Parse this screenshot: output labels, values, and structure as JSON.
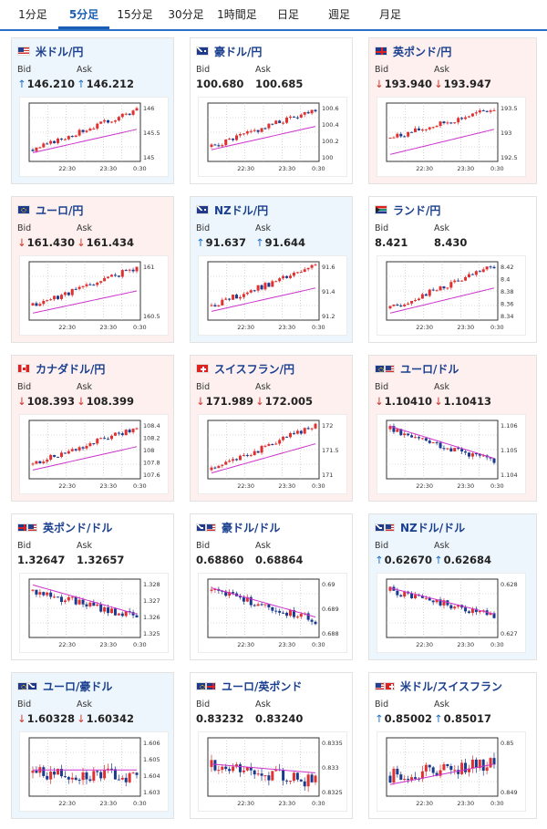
{
  "tabs": [
    {
      "label": "1分足",
      "active": false
    },
    {
      "label": "5分足",
      "active": true
    },
    {
      "label": "15分足",
      "active": false
    },
    {
      "label": "30分足",
      "active": false
    },
    {
      "label": "1時間足",
      "active": false
    },
    {
      "label": "日足",
      "active": false
    },
    {
      "label": "週足",
      "active": false
    },
    {
      "label": "月足",
      "active": false
    }
  ],
  "labels": {
    "bid": "Bid",
    "ask": "Ask"
  },
  "colors": {
    "up": "#1f70c1",
    "down": "#d0352a",
    "ma": "#cc33cc",
    "candle_up": "#e03030",
    "candle_down": "#1a3a8f"
  },
  "cards": [
    {
      "name": "米ドル/円",
      "flag": "US",
      "bg": "up",
      "dir": "up",
      "bid": "146.210",
      "ask": "146.212",
      "yticks": [
        "146",
        "145.5",
        "145"
      ],
      "xticks": [
        "22:30",
        "23:30",
        "0:30"
      ],
      "series": {
        "trend": 0.9,
        "vol": 0.04,
        "seed": 3,
        "start": 0.2,
        "end": 0.88,
        "ma_start": 0.15,
        "ma_end": 0.55
      }
    },
    {
      "name": "豪ドル/円",
      "flag": "AU",
      "bg": "flat",
      "dir": "none",
      "bid": "100.680",
      "ask": "100.685",
      "yticks": [
        "100.6",
        "100.4",
        "100.2",
        "100"
      ],
      "xticks": [
        "22:30",
        "23:30",
        "0:30"
      ],
      "series": {
        "trend": 0.9,
        "vol": 0.05,
        "seed": 5,
        "start": 0.25,
        "end": 0.9,
        "ma_start": 0.2,
        "ma_end": 0.6
      }
    },
    {
      "name": "英ポンド/円",
      "flag": "GB",
      "bg": "down",
      "dir": "down",
      "bid": "193.940",
      "ask": "193.947",
      "yticks": [
        "193.5",
        "193",
        "192.5"
      ],
      "xticks": [
        "22:30",
        "23:30",
        "0:30"
      ],
      "series": {
        "trend": 0.9,
        "vol": 0.05,
        "seed": 7,
        "start": 0.4,
        "end": 0.9,
        "ma_start": 0.12,
        "ma_end": 0.55
      }
    },
    {
      "name": "ユーロ/円",
      "flag": "EU",
      "bg": "down",
      "dir": "down",
      "bid": "161.430",
      "ask": "161.434",
      "yticks": [
        "161",
        "160.5"
      ],
      "xticks": [
        "22:30",
        "23:30",
        "0:30"
      ],
      "series": {
        "trend": 0.9,
        "vol": 0.05,
        "seed": 11,
        "start": 0.25,
        "end": 0.9,
        "ma_start": 0.12,
        "ma_end": 0.5
      }
    },
    {
      "name": "NZドル/円",
      "flag": "NZ",
      "bg": "up",
      "dir": "up",
      "bid": "91.637",
      "ask": "91.644",
      "yticks": [
        "91.6",
        "91.4",
        "91.2"
      ],
      "xticks": [
        "22:30",
        "23:30",
        "0:30"
      ],
      "series": {
        "trend": 0.9,
        "vol": 0.05,
        "seed": 13,
        "start": 0.25,
        "end": 0.92,
        "ma_start": 0.15,
        "ma_end": 0.55
      }
    },
    {
      "name": "ランド/円",
      "flag": "ZA",
      "bg": "flat",
      "dir": "none",
      "bid": "8.421",
      "ask": "8.430",
      "yticks": [
        "8.42",
        "8.4",
        "8.38",
        "8.36",
        "8.34"
      ],
      "xticks": [
        "22:30",
        "23:30",
        "0:30"
      ],
      "series": {
        "trend": 0.9,
        "vol": 0.05,
        "seed": 17,
        "start": 0.2,
        "end": 0.92,
        "ma_start": 0.12,
        "ma_end": 0.55
      }
    },
    {
      "name": "カナダドル/円",
      "flag": "CA",
      "bg": "down",
      "dir": "down",
      "bid": "108.393",
      "ask": "108.399",
      "yticks": [
        "108.4",
        "108.2",
        "108",
        "107.8",
        "107.6"
      ],
      "xticks": [
        "22:30",
        "23:30",
        "0:30"
      ],
      "series": {
        "trend": 0.9,
        "vol": 0.05,
        "seed": 19,
        "start": 0.25,
        "end": 0.88,
        "ma_start": 0.15,
        "ma_end": 0.55
      }
    },
    {
      "name": "スイスフラン/円",
      "flag": "CH",
      "bg": "down",
      "dir": "down",
      "bid": "171.989",
      "ask": "172.005",
      "yticks": [
        "172",
        "171.5",
        "171"
      ],
      "xticks": [
        "22:30",
        "23:30",
        "0:30"
      ],
      "series": {
        "trend": 0.9,
        "vol": 0.05,
        "seed": 23,
        "start": 0.15,
        "end": 0.92,
        "ma_start": 0.1,
        "ma_end": 0.6
      }
    },
    {
      "name": "ユーロ/ドル",
      "flag": "EU-US",
      "bg": "down",
      "dir": "down",
      "bid": "1.10410",
      "ask": "1.10413",
      "yticks": [
        "1.106",
        "1.105",
        "1.104"
      ],
      "xticks": [
        "22:30",
        "23:30",
        "0:30"
      ],
      "series": {
        "trend": -0.7,
        "vol": 0.06,
        "seed": 29,
        "start": 0.85,
        "end": 0.3,
        "ma_start": 0.9,
        "ma_end": 0.35
      }
    },
    {
      "name": "英ポンド/ドル",
      "flag": "GB-US",
      "bg": "flat",
      "dir": "none",
      "bid": "1.32647",
      "ask": "1.32657",
      "yticks": [
        "1.328",
        "1.327",
        "1.326",
        "1.325"
      ],
      "xticks": [
        "22:30",
        "23:30",
        "0:30"
      ],
      "series": {
        "trend": -0.6,
        "vol": 0.07,
        "seed": 31,
        "start": 0.8,
        "end": 0.35,
        "ma_start": 0.9,
        "ma_end": 0.4
      }
    },
    {
      "name": "豪ドル/ドル",
      "flag": "AU-US",
      "bg": "flat",
      "dir": "none",
      "bid": "0.68860",
      "ask": "0.68864",
      "yticks": [
        "0.69",
        "0.689",
        "0.688"
      ],
      "xticks": [
        "22:30",
        "23:30",
        "0:30"
      ],
      "series": {
        "trend": -0.6,
        "vol": 0.07,
        "seed": 37,
        "start": 0.8,
        "end": 0.3,
        "ma_start": 0.85,
        "ma_end": 0.35
      }
    },
    {
      "name": "NZドル/ドル",
      "flag": "NZ-US",
      "bg": "up",
      "dir": "up",
      "bid": "0.62670",
      "ask": "0.62684",
      "yticks": [
        "0.628",
        "0.627"
      ],
      "xticks": [
        "22:30",
        "23:30",
        "0:30"
      ],
      "series": {
        "trend": -0.6,
        "vol": 0.07,
        "seed": 41,
        "start": 0.8,
        "end": 0.35,
        "ma_start": 0.85,
        "ma_end": 0.4
      }
    },
    {
      "name": "ユーロ/豪ドル",
      "flag": "EU-AU",
      "bg": "up",
      "dir": "down",
      "bid": "1.60328",
      "ask": "1.60342",
      "yticks": [
        "1.606",
        "1.605",
        "1.604",
        "1.603"
      ],
      "xticks": [
        "22:30",
        "23:30",
        "0:30"
      ],
      "series": {
        "trend": 0.0,
        "vol": 0.12,
        "seed": 43,
        "start": 0.4,
        "end": 0.35,
        "ma_start": 0.45,
        "ma_end": 0.45
      }
    },
    {
      "name": "ユーロ/英ポンド",
      "flag": "EU-GB",
      "bg": "flat",
      "dir": "none",
      "bid": "0.83232",
      "ask": "0.83240",
      "yticks": [
        "0.8335",
        "0.833",
        "0.8325"
      ],
      "xticks": [
        "22:30",
        "23:30",
        "0:30"
      ],
      "series": {
        "trend": -0.2,
        "vol": 0.12,
        "seed": 47,
        "start": 0.5,
        "end": 0.25,
        "ma_start": 0.55,
        "ma_end": 0.4
      }
    },
    {
      "name": "米ドル/スイスフラン",
      "flag": "US-CH",
      "bg": "flat",
      "dir": "up",
      "bid": "0.85002",
      "ask": "0.85017",
      "yticks": [
        "0.85",
        "0.849"
      ],
      "xticks": [
        "22:30",
        "23:30",
        "0:30"
      ],
      "series": {
        "trend": 0.2,
        "vol": 0.12,
        "seed": 53,
        "start": 0.35,
        "end": 0.55,
        "ma_start": 0.2,
        "ma_end": 0.55
      }
    }
  ]
}
